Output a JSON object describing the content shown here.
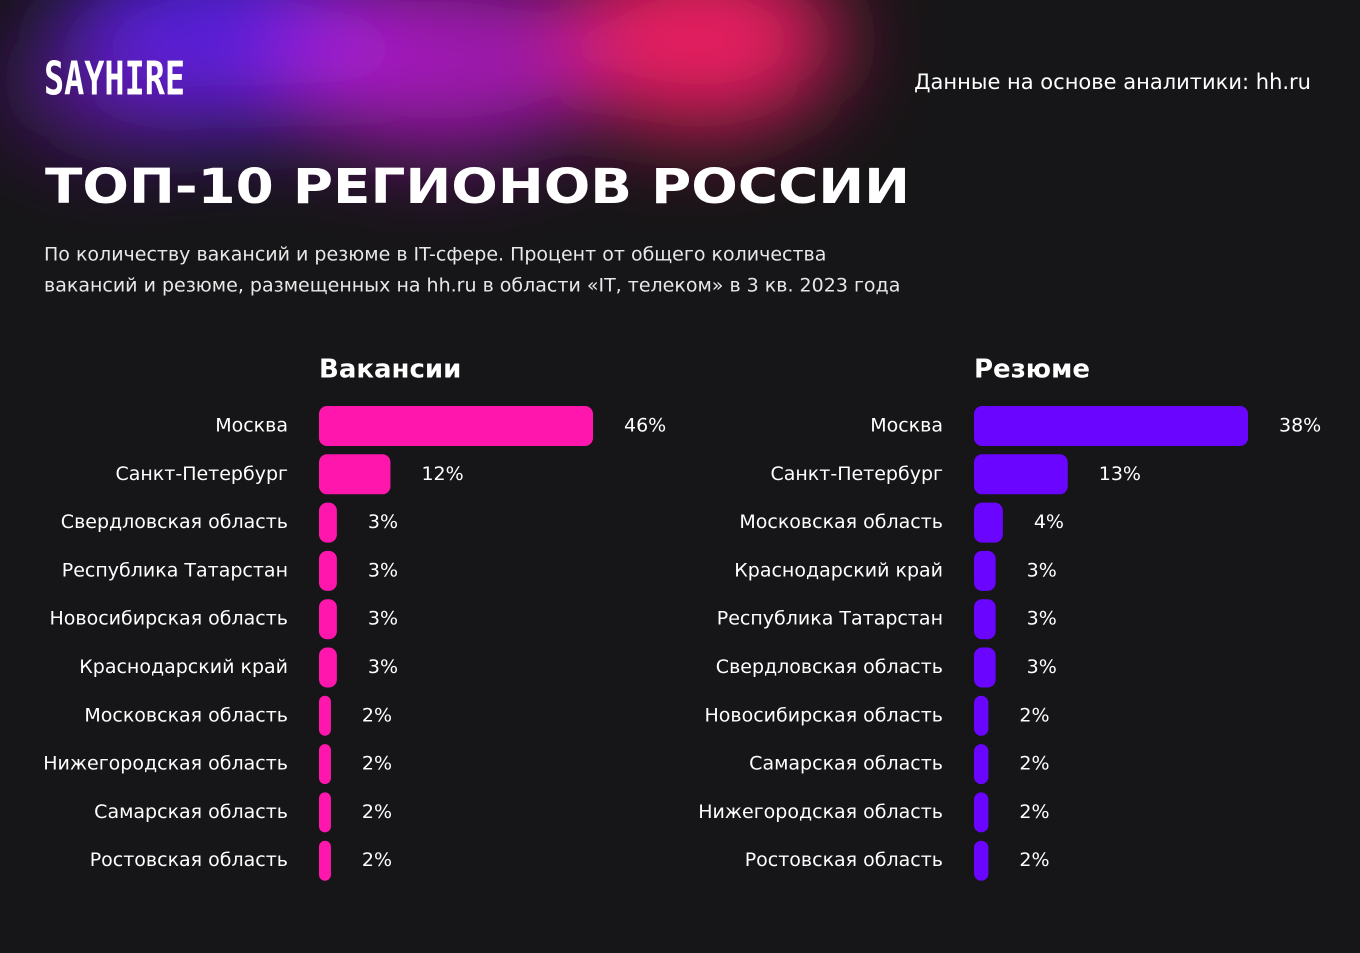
{
  "header": {
    "logo": "SAYHIRE",
    "source": "Данные на основе аналитики: hh.ru",
    "title": "ТОП-10 РЕГИОНОВ РОССИИ",
    "subtitle": [
      "По количеству вакансий и резюме в IT-сфере. Процент от общего количества",
      "вакансий и резюме, размещенных на hh.ru в области «IT, телеком» в 3 кв. 2023 года"
    ]
  },
  "chart_data": [
    {
      "type": "bar",
      "title": "Вакансии",
      "color": "#ff17ad",
      "categories": [
        "Москва",
        "Санкт-Петербург",
        "Свердловская область",
        "Республика Татарстан",
        "Новосибирская область",
        "Краснодарский край",
        "Московская область",
        "Нижегородская область",
        "Самарская область",
        "Ростовская область"
      ],
      "values": [
        46,
        12,
        3,
        3,
        3,
        3,
        2,
        2,
        2,
        2
      ],
      "value_labels": [
        "46%",
        "12%",
        "3%",
        "3%",
        "3%",
        "3%",
        "2%",
        "2%",
        "2%",
        "2%"
      ]
    },
    {
      "type": "bar",
      "title": "Резюме",
      "color": "#6a05ff",
      "categories": [
        "Москва",
        "Санкт-Петербург",
        "Московская область",
        "Краснодарский край",
        "Республика Татарстан",
        "Свердловская область",
        "Новосибирская область",
        "Самарская область",
        "Нижегородская область",
        "Ростовская область"
      ],
      "values": [
        38,
        13,
        4,
        3,
        3,
        3,
        2,
        2,
        2,
        2
      ],
      "value_labels": [
        "38%",
        "13%",
        "4%",
        "3%",
        "3%",
        "3%",
        "2%",
        "2%",
        "2%",
        "2%"
      ]
    }
  ]
}
